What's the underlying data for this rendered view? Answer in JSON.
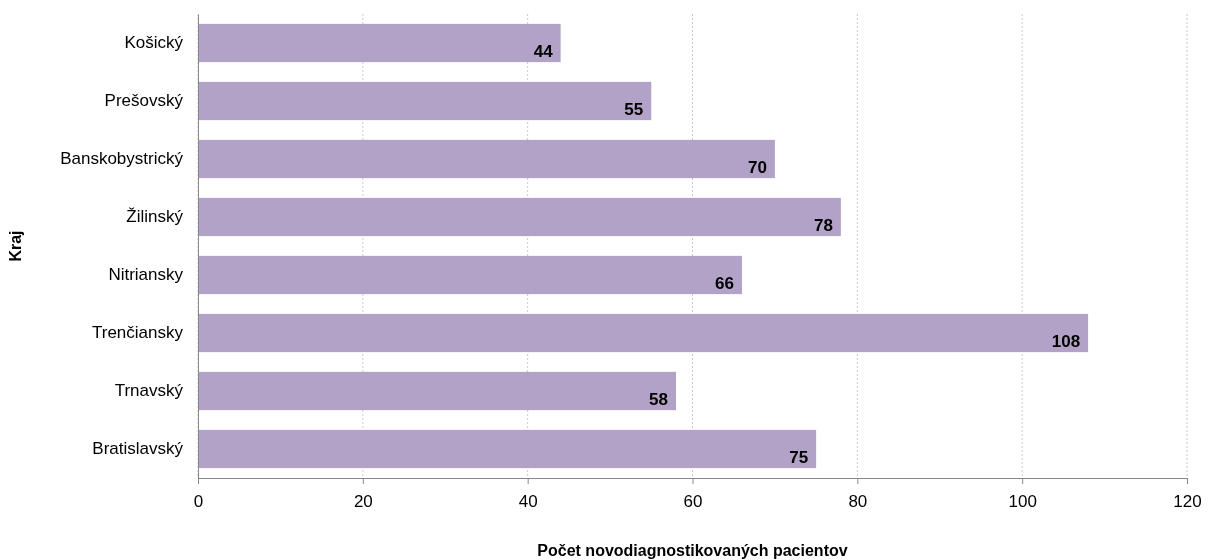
{
  "chart_data": {
    "type": "bar",
    "orientation": "horizontal",
    "xlabel": "Počet novodiagnostikovaných pacientov",
    "ylabel": "Kraj",
    "categories": [
      "Košický",
      "Prešovský",
      "Banskobystrický",
      "Žilinský",
      "Nitriansky",
      "Trenčiansky",
      "Trnavský",
      "Bratislavský"
    ],
    "values": [
      44,
      55,
      70,
      78,
      66,
      108,
      58,
      75
    ],
    "color": "#b3a2c7",
    "xlim": [
      0,
      120
    ],
    "xticks": [
      0,
      20,
      40,
      60,
      80,
      100,
      120
    ],
    "grid": "x",
    "data_labels": true
  }
}
